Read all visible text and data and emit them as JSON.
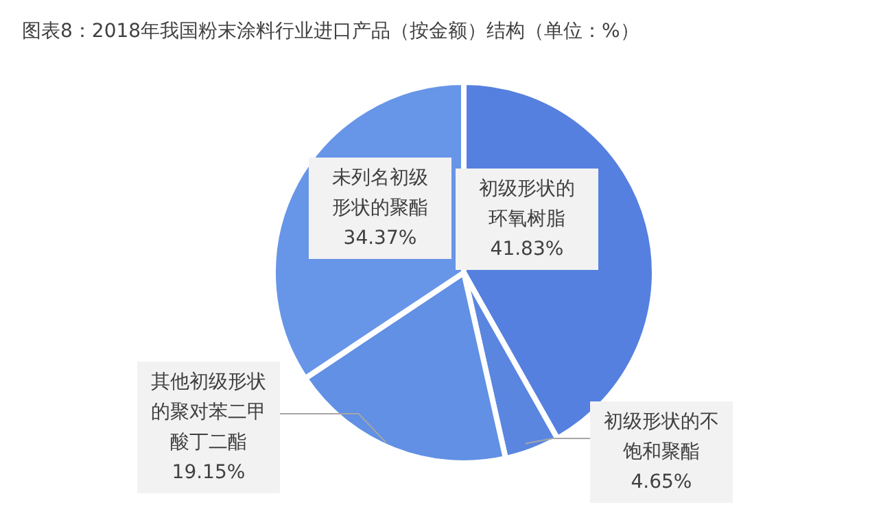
{
  "chart_data": {
    "type": "pie",
    "title": "图表8：2018年我国粉末涂料行业进口产品（按金额）结构（单位：%）",
    "categories": [
      "初级形状的环氧树脂",
      "初级形状的不饱和聚酯",
      "其他初级形状的聚对苯二甲酸丁二酯",
      "未列名初级形状的聚酯"
    ],
    "values": [
      41.83,
      4.65,
      19.15,
      34.37
    ],
    "value_labels": [
      "41.83%",
      "4.65%",
      "19.15%",
      "34.37%"
    ],
    "colors": [
      "#5580e0",
      "#5a86e0",
      "#6190e4",
      "#6795e8"
    ]
  }
}
